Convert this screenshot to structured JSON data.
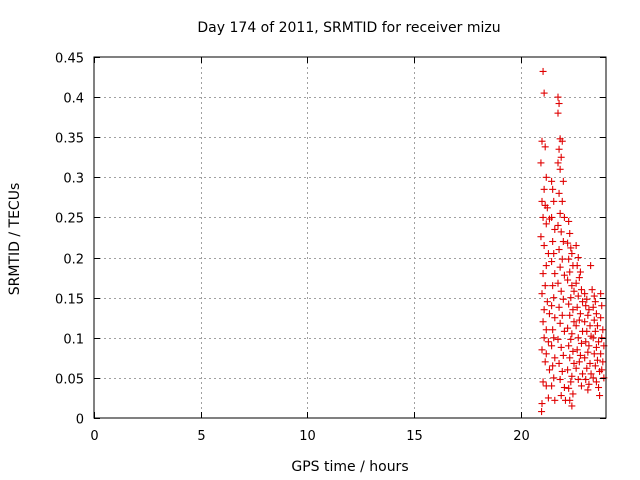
{
  "chart_data": {
    "type": "scatter",
    "title": "Day 174 of 2011, SRMTID for receiver mizu",
    "xlabel": "GPS time / hours",
    "ylabel": "SRMTID / TECUs",
    "xlim": [
      0,
      24
    ],
    "ylim": [
      0,
      0.45
    ],
    "xticks": [
      0,
      5,
      10,
      15,
      20
    ],
    "yticks": [
      0,
      0.05,
      0.1,
      0.15,
      0.2,
      0.25,
      0.3,
      0.35,
      0.4,
      0.45
    ],
    "xtick_labels": [
      "0",
      "5",
      "10",
      "15",
      "20"
    ],
    "ytick_labels": [
      "0",
      "0.05",
      "0.1",
      "0.15",
      "0.2",
      "0.25",
      "0.3",
      "0.35",
      "0.4",
      "0.45"
    ],
    "grid": true,
    "marker": "+",
    "color": "#e00000",
    "series": [
      {
        "points": [
          [
            21.05,
            0.432
          ],
          [
            21.1,
            0.405
          ],
          [
            21.0,
            0.345
          ],
          [
            21.15,
            0.338
          ],
          [
            20.95,
            0.318
          ],
          [
            21.2,
            0.3
          ],
          [
            21.1,
            0.285
          ],
          [
            21.0,
            0.27
          ],
          [
            21.15,
            0.265
          ],
          [
            21.25,
            0.262
          ],
          [
            21.05,
            0.25
          ],
          [
            21.35,
            0.248
          ],
          [
            21.2,
            0.242
          ],
          [
            20.95,
            0.226
          ],
          [
            21.1,
            0.215
          ],
          [
            21.3,
            0.205
          ],
          [
            21.2,
            0.19
          ],
          [
            21.05,
            0.18
          ],
          [
            21.15,
            0.165
          ],
          [
            21.0,
            0.155
          ],
          [
            21.25,
            0.145
          ],
          [
            21.1,
            0.135
          ],
          [
            21.35,
            0.13
          ],
          [
            21.05,
            0.12
          ],
          [
            21.2,
            0.11
          ],
          [
            21.1,
            0.1
          ],
          [
            21.3,
            0.095
          ],
          [
            21.0,
            0.085
          ],
          [
            21.2,
            0.08
          ],
          [
            21.15,
            0.07
          ],
          [
            21.35,
            0.06
          ],
          [
            21.05,
            0.045
          ],
          [
            21.2,
            0.04
          ],
          [
            21.3,
            0.025
          ],
          [
            21.0,
            0.018
          ],
          [
            20.98,
            0.008
          ],
          [
            21.45,
            0.295
          ],
          [
            21.5,
            0.285
          ],
          [
            21.55,
            0.27
          ],
          [
            21.45,
            0.25
          ],
          [
            21.6,
            0.235
          ],
          [
            21.5,
            0.22
          ],
          [
            21.55,
            0.205
          ],
          [
            21.45,
            0.195
          ],
          [
            21.6,
            0.18
          ],
          [
            21.5,
            0.165
          ],
          [
            21.55,
            0.15
          ],
          [
            21.45,
            0.14
          ],
          [
            21.6,
            0.125
          ],
          [
            21.5,
            0.11
          ],
          [
            21.55,
            0.1
          ],
          [
            21.45,
            0.09
          ],
          [
            21.6,
            0.075
          ],
          [
            21.5,
            0.065
          ],
          [
            21.55,
            0.05
          ],
          [
            21.45,
            0.04
          ],
          [
            21.6,
            0.022
          ],
          [
            21.75,
            0.4
          ],
          [
            21.8,
            0.392
          ],
          [
            21.75,
            0.38
          ],
          [
            21.85,
            0.348
          ],
          [
            21.95,
            0.345
          ],
          [
            21.8,
            0.335
          ],
          [
            21.9,
            0.325
          ],
          [
            21.75,
            0.318
          ],
          [
            21.85,
            0.31
          ],
          [
            22.0,
            0.295
          ],
          [
            21.8,
            0.28
          ],
          [
            21.95,
            0.27
          ],
          [
            21.85,
            0.255
          ],
          [
            22.05,
            0.25
          ],
          [
            21.75,
            0.24
          ],
          [
            21.9,
            0.232
          ],
          [
            22.0,
            0.22
          ],
          [
            21.8,
            0.21
          ],
          [
            21.95,
            0.198
          ],
          [
            21.85,
            0.188
          ],
          [
            22.05,
            0.178
          ],
          [
            21.75,
            0.168
          ],
          [
            21.9,
            0.158
          ],
          [
            22.0,
            0.148
          ],
          [
            21.8,
            0.138
          ],
          [
            21.95,
            0.128
          ],
          [
            21.85,
            0.118
          ],
          [
            22.05,
            0.108
          ],
          [
            21.75,
            0.098
          ],
          [
            21.9,
            0.088
          ],
          [
            22.0,
            0.078
          ],
          [
            21.8,
            0.068
          ],
          [
            21.95,
            0.058
          ],
          [
            21.85,
            0.048
          ],
          [
            22.05,
            0.038
          ],
          [
            21.9,
            0.028
          ],
          [
            22.1,
            0.022
          ],
          [
            22.25,
            0.245
          ],
          [
            22.3,
            0.23
          ],
          [
            22.2,
            0.218
          ],
          [
            22.35,
            0.212
          ],
          [
            22.4,
            0.205
          ],
          [
            22.25,
            0.198
          ],
          [
            22.45,
            0.19
          ],
          [
            22.3,
            0.182
          ],
          [
            22.2,
            0.172
          ],
          [
            22.4,
            0.165
          ],
          [
            22.5,
            0.158
          ],
          [
            22.35,
            0.15
          ],
          [
            22.25,
            0.142
          ],
          [
            22.45,
            0.135
          ],
          [
            22.3,
            0.128
          ],
          [
            22.5,
            0.12
          ],
          [
            22.2,
            0.112
          ],
          [
            22.4,
            0.105
          ],
          [
            22.35,
            0.098
          ],
          [
            22.25,
            0.09
          ],
          [
            22.45,
            0.083
          ],
          [
            22.3,
            0.075
          ],
          [
            22.5,
            0.068
          ],
          [
            22.2,
            0.06
          ],
          [
            22.4,
            0.052
          ],
          [
            22.35,
            0.045
          ],
          [
            22.25,
            0.037
          ],
          [
            22.45,
            0.03
          ],
          [
            22.3,
            0.022
          ],
          [
            22.4,
            0.015
          ],
          [
            22.6,
            0.215
          ],
          [
            22.7,
            0.2
          ],
          [
            22.65,
            0.19
          ],
          [
            22.8,
            0.182
          ],
          [
            22.75,
            0.175
          ],
          [
            22.6,
            0.168
          ],
          [
            22.85,
            0.16
          ],
          [
            22.7,
            0.152
          ],
          [
            22.9,
            0.145
          ],
          [
            22.65,
            0.138
          ],
          [
            22.8,
            0.13
          ],
          [
            22.75,
            0.122
          ],
          [
            22.6,
            0.115
          ],
          [
            22.9,
            0.108
          ],
          [
            22.7,
            0.1
          ],
          [
            22.85,
            0.093
          ],
          [
            22.65,
            0.085
          ],
          [
            22.8,
            0.078
          ],
          [
            22.75,
            0.07
          ],
          [
            22.6,
            0.062
          ],
          [
            22.9,
            0.055
          ],
          [
            22.7,
            0.048
          ],
          [
            22.85,
            0.04
          ],
          [
            23.0,
            0.155
          ],
          [
            23.1,
            0.148
          ],
          [
            23.05,
            0.14
          ],
          [
            23.2,
            0.135
          ],
          [
            23.15,
            0.128
          ],
          [
            23.0,
            0.12
          ],
          [
            23.25,
            0.115
          ],
          [
            23.1,
            0.108
          ],
          [
            23.3,
            0.102
          ],
          [
            23.05,
            0.095
          ],
          [
            23.2,
            0.09
          ],
          [
            23.15,
            0.082
          ],
          [
            23.0,
            0.075
          ],
          [
            23.25,
            0.068
          ],
          [
            23.1,
            0.062
          ],
          [
            23.3,
            0.055
          ],
          [
            23.05,
            0.048
          ],
          [
            23.2,
            0.042
          ],
          [
            23.15,
            0.035
          ],
          [
            23.28,
            0.19
          ],
          [
            23.35,
            0.16
          ],
          [
            23.45,
            0.152
          ],
          [
            23.5,
            0.145
          ],
          [
            23.4,
            0.138
          ],
          [
            23.55,
            0.13
          ],
          [
            23.45,
            0.122
          ],
          [
            23.6,
            0.115
          ],
          [
            23.5,
            0.108
          ],
          [
            23.4,
            0.1
          ],
          [
            23.65,
            0.095
          ],
          [
            23.55,
            0.088
          ],
          [
            23.45,
            0.08
          ],
          [
            23.6,
            0.072
          ],
          [
            23.5,
            0.065
          ],
          [
            23.7,
            0.058
          ],
          [
            23.4,
            0.05
          ],
          [
            23.55,
            0.045
          ],
          [
            23.65,
            0.038
          ],
          [
            23.7,
            0.028
          ],
          [
            23.75,
            0.155
          ],
          [
            23.8,
            0.14
          ],
          [
            23.75,
            0.125
          ],
          [
            23.85,
            0.11
          ],
          [
            23.8,
            0.1
          ],
          [
            23.9,
            0.09
          ],
          [
            23.75,
            0.08
          ],
          [
            23.85,
            0.07
          ],
          [
            23.8,
            0.06
          ],
          [
            23.9,
            0.05
          ]
        ]
      }
    ]
  }
}
